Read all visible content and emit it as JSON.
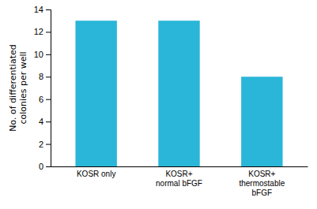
{
  "chart_data": {
    "type": "bar",
    "categories": [
      "KOSR only",
      "KOSR+\nnormal bFGF",
      "KOSR+\nthermostable\nbFGF"
    ],
    "values": [
      13,
      13,
      8
    ],
    "color": "#29b6d8",
    "ylabel": "No. of differentiated\ncolonies per well",
    "ylim": [
      0,
      14
    ],
    "yticks": [
      0,
      2,
      4,
      6,
      8,
      10,
      12,
      14
    ],
    "grid": false
  }
}
